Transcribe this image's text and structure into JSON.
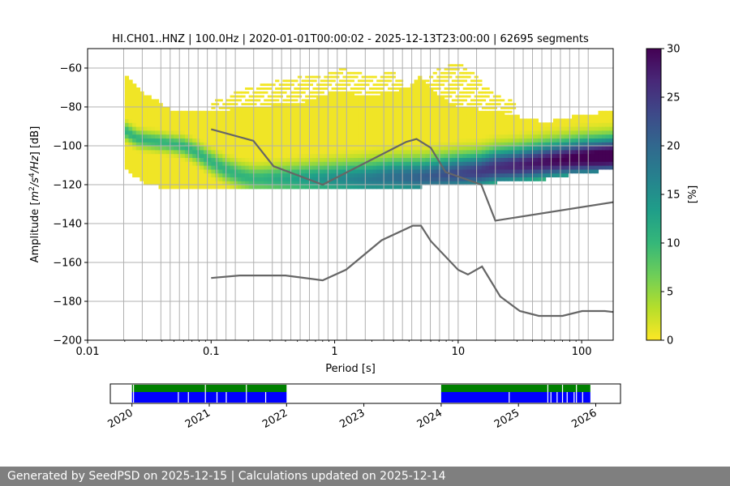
{
  "chart_data": [
    {
      "type": "heatmap",
      "title": "HI.CH01..HNZ | 100.0Hz | 2020-01-01T00:00:02 - 2025-12-13T23:00:00 | 62695 segments",
      "xlabel": "Period [s]",
      "ylabel_main": "Amplitude [",
      "ylabel_units": [
        "m",
        "2",
        "/s",
        "4",
        "/Hz",
        "] [dB]"
      ],
      "x_scale": "log",
      "xlim": [
        0.01,
        180
      ],
      "ylim": [
        -200,
        -50
      ],
      "x_ticks": [
        0.01,
        0.1,
        1,
        10,
        100
      ],
      "x_tick_labels": [
        "0.01",
        "0.1",
        "1",
        "10",
        "100"
      ],
      "y_ticks": [
        -200,
        -180,
        -160,
        -140,
        -120,
        -100,
        -80,
        -60
      ],
      "y_tick_labels": [
        "−200",
        "−180",
        "−160",
        "−140",
        "−120",
        "−100",
        "−80",
        "−60"
      ],
      "grid": "vertical lines at PSD period bins",
      "period_bins": [
        0.0196,
        0.0277,
        0.0392,
        0.0466,
        0.0554,
        0.0659,
        0.0784,
        0.0932,
        0.111,
        0.132,
        0.157,
        0.221,
        0.313,
        0.372,
        0.442,
        0.526,
        0.625,
        0.744,
        0.884,
        1.05,
        1.25,
        1.77,
        2.5,
        2.97,
        3.54,
        4.21,
        5.0,
        5.95,
        7.07,
        8.41,
        10.0,
        14.1,
        20.0,
        28.3,
        33.6,
        40.0,
        47.6,
        56.6,
        67.3,
        80.0,
        95.1,
        113
      ],
      "colorbar": {
        "label": "[%]",
        "range": [
          0,
          30
        ],
        "ticks": [
          0,
          5,
          10,
          15,
          20,
          25,
          30
        ],
        "colors": [
          "#fde725",
          "#b5de2b",
          "#6ece58",
          "#35b779",
          "#1f9e89",
          "#26828e",
          "#31688e",
          "#3e4989",
          "#482878",
          "#440154"
        ]
      },
      "mode_curve": {
        "x": [
          0.02,
          0.025,
          0.03,
          0.04,
          0.05,
          0.06,
          0.07,
          0.08,
          0.1,
          0.13,
          0.17,
          0.22,
          0.3,
          0.4,
          0.5,
          0.7,
          1,
          1.5,
          2,
          3,
          5,
          7,
          10,
          15,
          20,
          30,
          50,
          70,
          100,
          180
        ],
        "y": [
          -92,
          -96,
          -97,
          -98,
          -99,
          -100,
          -102,
          -104,
          -108,
          -112,
          -115,
          -117,
          -117,
          -117,
          -117,
          -117,
          -117,
          -117,
          -117,
          -116,
          -116,
          -115,
          -114,
          -113,
          -111,
          -110,
          -108,
          -107,
          -106,
          -105
        ]
      },
      "range_upper": {
        "x": [
          0.02,
          0.03,
          0.05,
          0.1,
          0.2,
          0.5,
          1,
          2,
          4,
          5,
          6,
          8,
          10,
          20,
          50,
          100,
          180
        ],
        "y": [
          -62,
          -74,
          -82,
          -82,
          -80,
          -78,
          -72,
          -74,
          -70,
          -64,
          -70,
          -76,
          -80,
          -82,
          -88,
          -84,
          -82
        ]
      },
      "range_lower": {
        "x": [
          0.02,
          0.03,
          0.05,
          0.1,
          0.2,
          0.5,
          1,
          2,
          5,
          10,
          20,
          50,
          100,
          180
        ],
        "y": [
          -112,
          -120,
          -122,
          -122,
          -122,
          -122,
          -121,
          -121,
          -121,
          -120,
          -119,
          -117,
          -114,
          -112
        ]
      },
      "sparse_upper": {
        "x": [
          0.1,
          0.2,
          0.4,
          0.8,
          1.2,
          2,
          3,
          4.2,
          5,
          7,
          10,
          14,
          20,
          30
        ],
        "y": [
          -78,
          -70,
          -66,
          -63,
          -60,
          -64,
          -62,
          -74,
          -70,
          -60,
          -58,
          -64,
          -74,
          -78
        ]
      },
      "noise_models": [
        {
          "name": "",
          "x": [
            0.1,
            0.22,
            0.32,
            0.8,
            3.8,
            4.6,
            6,
            7.9,
            15.4,
            20,
            180
          ],
          "y": [
            -91.5,
            -97.4,
            -110.5,
            -120,
            -98,
            -96.5,
            -101,
            -113.5,
            -120,
            -138.5,
            -129
          ]
        },
        {
          "name": "",
          "x": [
            0.1,
            0.17,
            0.4,
            0.8,
            1.24,
            2.4,
            4.3,
            5,
            6,
            10,
            12,
            15.6,
            21.9,
            31.6,
            45,
            70,
            101,
            154,
            180
          ],
          "y": [
            -168,
            -166.7,
            -166.7,
            -169.2,
            -163.7,
            -148.6,
            -141.1,
            -141.1,
            -149,
            -163.8,
            -166.2,
            -162.1,
            -177.5,
            -185,
            -187.5,
            -187.5,
            -185,
            -185,
            -185.5
          ]
        }
      ]
    },
    {
      "type": "timeline",
      "tick_labels": [
        "2020",
        "2021",
        "2022",
        "2023",
        "2024",
        "2025",
        "2026"
      ],
      "tick_years": [
        2020,
        2021,
        2022,
        2023,
        2024,
        2025,
        2026
      ],
      "xlim": [
        2019.72,
        2026.32
      ],
      "colors": {
        "coverage": "#008000",
        "segments": "#0000ff"
      },
      "coverage_spans": [
        [
          2020.0,
          2022.0
        ],
        [
          2024.0,
          2025.93
        ]
      ],
      "gaps": [
        2020.02,
        2020.6,
        2020.73,
        2020.95,
        2021.1,
        2021.22,
        2021.48,
        2021.73,
        2024.88,
        2025.38,
        2025.42,
        2025.5,
        2025.57,
        2025.63,
        2025.72,
        2025.75,
        2025.83
      ]
    }
  ],
  "colorbar_labels": {
    "unit": "[%]"
  },
  "footer": {
    "text": "Generated by SeedPSD on 2025-12-15 | Calculations updated on 2025-12-14"
  }
}
